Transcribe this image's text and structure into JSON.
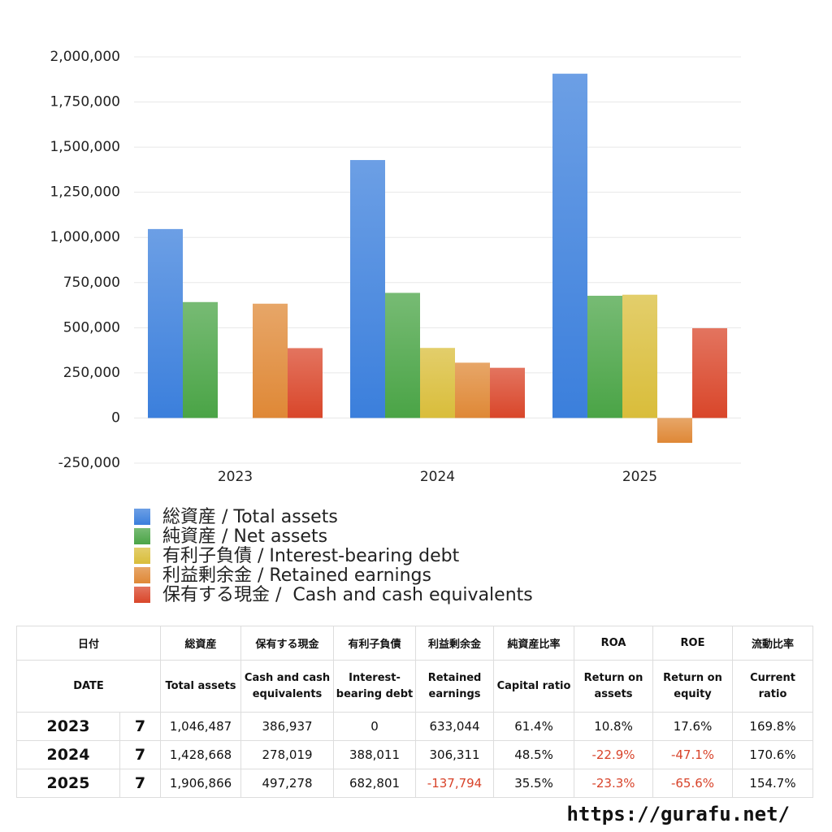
{
  "chart_data": {
    "type": "bar",
    "categories": [
      "2023",
      "2024",
      "2025"
    ],
    "series": [
      {
        "name": "総資産 / Total assets",
        "color": "#3b7fdc",
        "values": [
          1046487,
          1428668,
          1906866
        ]
      },
      {
        "name": "純資産 / Net assets",
        "color": "#4aa446",
        "values": [
          642000,
          693000,
          677000
        ]
      },
      {
        "name": "有利子負債 / Interest-bearing debt",
        "color": "#d9bd3a",
        "values": [
          0,
          388011,
          682801
        ]
      },
      {
        "name": "利益剰余金 / Retained earnings",
        "color": "#df8836",
        "values": [
          633044,
          306311,
          -137794
        ]
      },
      {
        "name": "保有する現金 /  Cash and cash equivalents",
        "color": "#d9462a",
        "values": [
          386937,
          278019,
          497278
        ]
      }
    ],
    "ylim": [
      -250000,
      2000000
    ],
    "yticks": [
      {
        "value": -250000,
        "label": "-250,000"
      },
      0,
      {
        "value": 250000,
        "label": "250,000"
      },
      {
        "value": 500000,
        "label": "500,000"
      },
      {
        "value": 750000,
        "label": "750,000"
      },
      {
        "value": 1000000,
        "label": "1,000,000"
      },
      {
        "value": 1250000,
        "label": "1,250,000"
      },
      {
        "value": 1500000,
        "label": "1,500,000"
      },
      {
        "value": 1750000,
        "label": "1,750,000"
      },
      {
        "value": 2000000,
        "label": "2,000,000"
      }
    ],
    "grid": true
  },
  "table": {
    "date_ja": "日付",
    "date_en": "DATE",
    "columns": [
      {
        "ja": "総資産",
        "en": "Total assets"
      },
      {
        "ja": "保有する現金",
        "en": "Cash and cash equivalents"
      },
      {
        "ja": "有利子負債",
        "en": "Interest-bearing debt"
      },
      {
        "ja": "利益剰余金",
        "en": "Retained earnings"
      },
      {
        "ja": "純資産比率",
        "en": "Capital ratio"
      },
      {
        "ja": "ROA",
        "en": "Return on assets"
      },
      {
        "ja": "ROE",
        "en": "Return on equity"
      },
      {
        "ja": "流動比率",
        "en": "Current ratio"
      }
    ],
    "rows": [
      {
        "year": "2023",
        "month": "7",
        "cells": [
          "1,046,487",
          "386,937",
          "0",
          "633,044",
          "61.4%",
          "10.8%",
          "17.6%",
          "169.8%"
        ]
      },
      {
        "year": "2024",
        "month": "7",
        "cells": [
          "1,428,668",
          "278,019",
          "388,011",
          "306,311",
          "48.5%",
          "-22.9%",
          "-47.1%",
          "170.6%"
        ]
      },
      {
        "year": "2025",
        "month": "7",
        "cells": [
          "1,906,866",
          "497,278",
          "682,801",
          "-137,794",
          "35.5%",
          "-23.3%",
          "-65.6%",
          "154.7%"
        ]
      }
    ]
  },
  "footer": "https://gurafu.net/"
}
